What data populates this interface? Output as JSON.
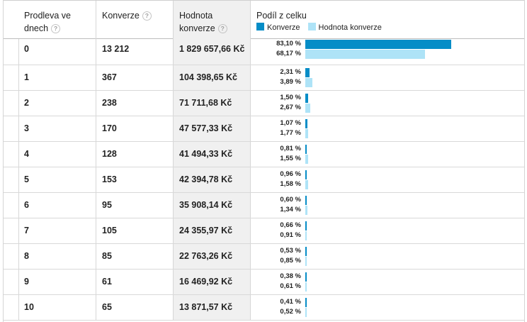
{
  "columns": {
    "delay": "Prodleva ve dnech",
    "conversions": "Konverze",
    "conversion_value": "Hodnota konverze",
    "share": "Podíl z celku"
  },
  "help_glyph": "?",
  "legend": [
    {
      "label": "Konverze",
      "color": "#058dc7"
    },
    {
      "label": "Hodnota konverze",
      "color": "#aee3f7"
    }
  ],
  "rows": [
    {
      "days": "0",
      "conversions": "13 212",
      "value": "1 829 657,66 Kč",
      "conv_pct": "83,10 %",
      "value_pct": "68,17 %",
      "conv_share": 83.1,
      "value_share": 68.17
    },
    {
      "days": "1",
      "conversions": "367",
      "value": "104 398,65 Kč",
      "conv_pct": "2,31 %",
      "value_pct": "3,89 %",
      "conv_share": 2.31,
      "value_share": 3.89
    },
    {
      "days": "2",
      "conversions": "238",
      "value": "71 711,68 Kč",
      "conv_pct": "1,50 %",
      "value_pct": "2,67 %",
      "conv_share": 1.5,
      "value_share": 2.67
    },
    {
      "days": "3",
      "conversions": "170",
      "value": "47 577,33 Kč",
      "conv_pct": "1,07 %",
      "value_pct": "1,77 %",
      "conv_share": 1.07,
      "value_share": 1.77
    },
    {
      "days": "4",
      "conversions": "128",
      "value": "41 494,33 Kč",
      "conv_pct": "0,81 %",
      "value_pct": "1,55 %",
      "conv_share": 0.81,
      "value_share": 1.55
    },
    {
      "days": "5",
      "conversions": "153",
      "value": "42 394,78 Kč",
      "conv_pct": "0,96 %",
      "value_pct": "1,58 %",
      "conv_share": 0.96,
      "value_share": 1.58
    },
    {
      "days": "6",
      "conversions": "95",
      "value": "35 908,14 Kč",
      "conv_pct": "0,60 %",
      "value_pct": "1,34 %",
      "conv_share": 0.6,
      "value_share": 1.34
    },
    {
      "days": "7",
      "conversions": "105",
      "value": "24 355,97 Kč",
      "conv_pct": "0,66 %",
      "value_pct": "0,91 %",
      "conv_share": 0.66,
      "value_share": 0.91
    },
    {
      "days": "8",
      "conversions": "85",
      "value": "22 763,26 Kč",
      "conv_pct": "0,53 %",
      "value_pct": "0,85 %",
      "conv_share": 0.53,
      "value_share": 0.85
    },
    {
      "days": "9",
      "conversions": "61",
      "value": "16 469,92 Kč",
      "conv_pct": "0,38 %",
      "value_pct": "0,61 %",
      "conv_share": 0.38,
      "value_share": 0.61
    },
    {
      "days": "10",
      "conversions": "65",
      "value": "13 871,57 Kč",
      "conv_pct": "0,41 %",
      "value_pct": "0,52 %",
      "conv_share": 0.41,
      "value_share": 0.52
    }
  ]
}
